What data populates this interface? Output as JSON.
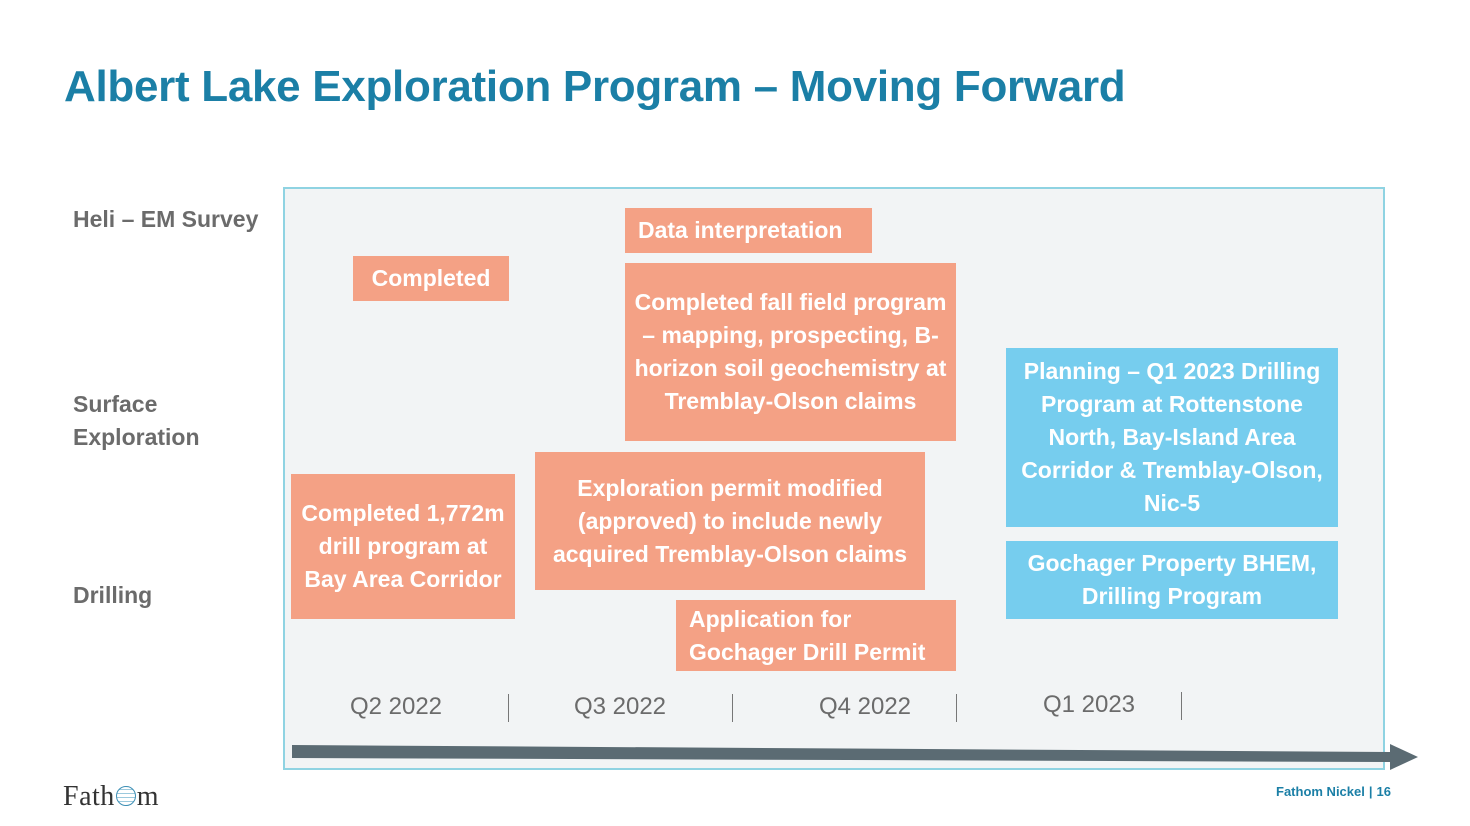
{
  "title": "Albert Lake Exploration Program – Moving Forward",
  "rows": [
    "Heli – EM Survey",
    "Surface Exploration",
    "Drilling"
  ],
  "boxes": {
    "completed_heli": "Completed",
    "data_interpretation": "Data interpretation",
    "fall_field_program": "Completed fall field program – mapping, prospecting, B-horizon soil geochemistry at Tremblay-Olson claims",
    "drill_program": "Completed 1,772m drill program at Bay Area Corridor",
    "permit_modified": "Exploration permit modified (approved) to include newly acquired Tremblay-Olson claims",
    "application_permit": "Application for Gochager Drill Permit",
    "planning_q1": "Planning – Q1 2023 Drilling Program at Rottenstone North, Bay-Island Area Corridor & Tremblay-Olson, Nic-5",
    "gochager_bhem": "Gochager Property BHEM, Drilling Program"
  },
  "quarters": [
    "Q2 2022",
    "Q3 2022",
    "Q4 2022",
    "Q1 2023"
  ],
  "logo": {
    "pre": "Fath",
    "post": "m"
  },
  "footer": {
    "company": "Fathom Nickel",
    "separator": "|",
    "page": "16"
  },
  "colors": {
    "title": "#1b7fa6",
    "salmon": "#f4a185",
    "blue": "#76cdee",
    "panel_border": "#8fd3e2"
  }
}
